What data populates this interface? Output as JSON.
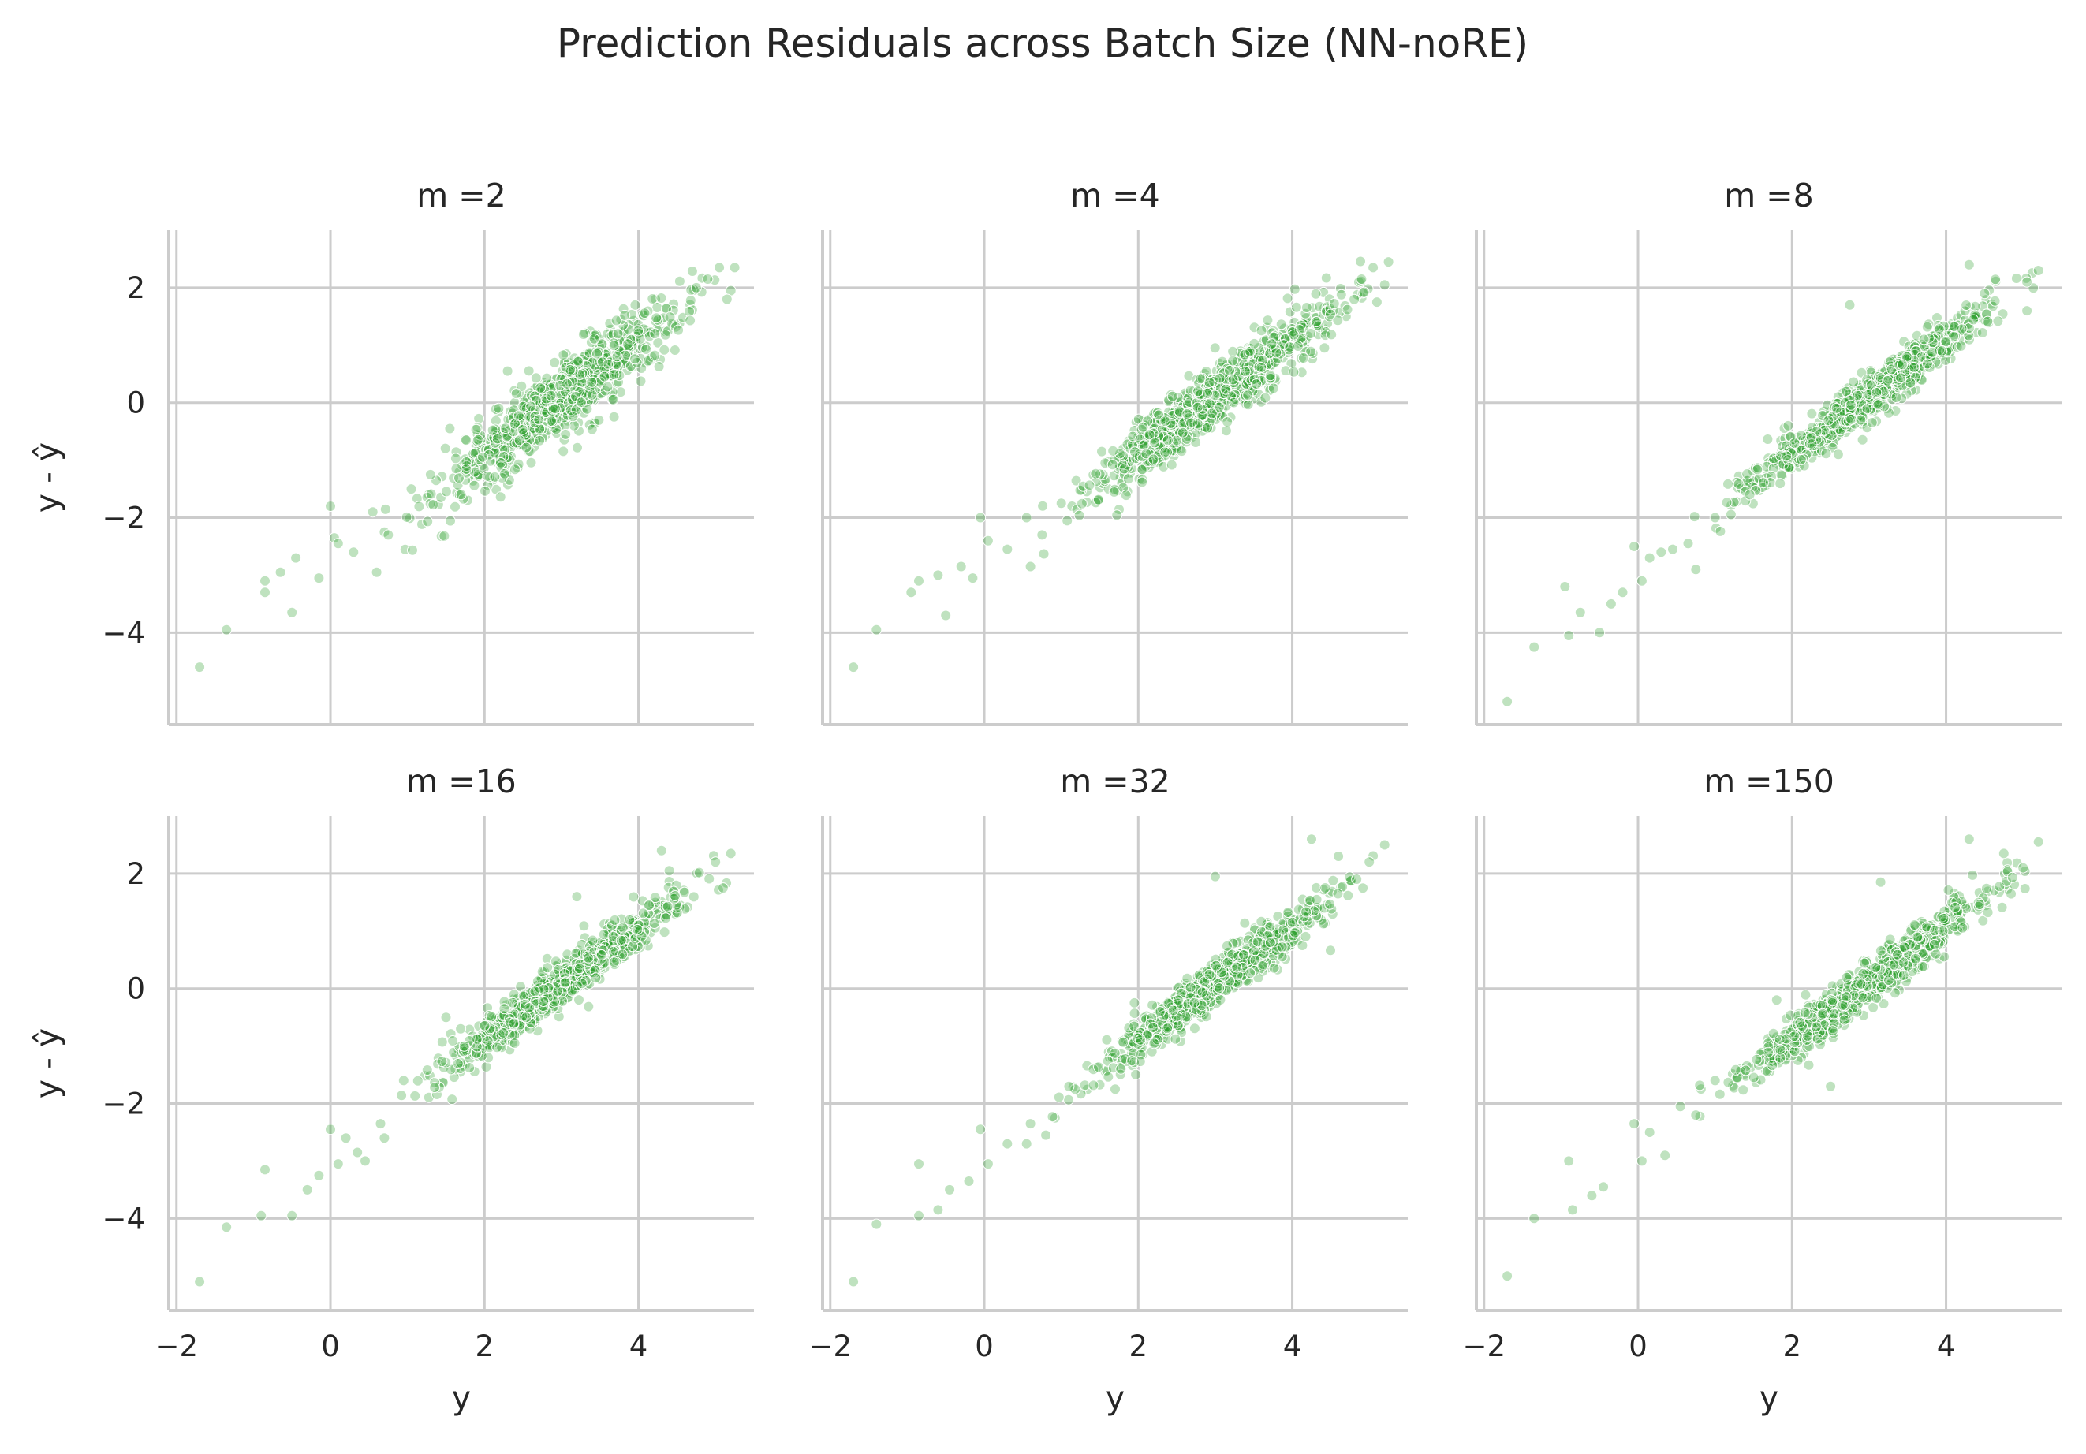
{
  "figure": {
    "title": "Prediction Residuals across Batch Size (NN-noRE)",
    "point_color": "#2ca02c",
    "point_opacity": 0.3,
    "grid_color": "#cccccc"
  },
  "chart_data": {
    "type": "scatter",
    "layout": "3x2 facet grid, shared axes",
    "xlabel": "y",
    "ylabel": "y - ŷ",
    "xlim": [
      -2.1,
      5.5
    ],
    "ylim": [
      -5.6,
      3.0
    ],
    "x_ticks": [
      -2,
      0,
      2,
      4
    ],
    "y_ticks": [
      -4,
      -2,
      0,
      2
    ],
    "grid": true,
    "trend": {
      "slope": 0.98,
      "intercept": -2.85
    },
    "n_points_per_panel": 800,
    "panels": [
      {
        "title": "m =2",
        "noise_sd": 0.32,
        "points": [
          [
            -1.7,
            -4.6
          ],
          [
            -1.35,
            -3.95
          ],
          [
            -0.85,
            -3.3
          ],
          [
            -0.85,
            -3.1
          ],
          [
            -0.65,
            -2.95
          ],
          [
            -0.5,
            -3.65
          ],
          [
            -0.45,
            -2.7
          ],
          [
            -0.15,
            -3.05
          ],
          [
            0.0,
            -1.8
          ],
          [
            0.05,
            -2.35
          ],
          [
            0.1,
            -2.45
          ],
          [
            0.3,
            -2.6
          ],
          [
            0.55,
            -1.9
          ],
          [
            0.6,
            -2.95
          ],
          [
            0.7,
            -2.25
          ],
          [
            0.75,
            -2.3
          ],
          [
            1.05,
            -1.5
          ],
          [
            1.3,
            -1.25
          ],
          [
            1.55,
            -0.45
          ],
          [
            2.3,
            0.55
          ],
          [
            4.75,
            2.0
          ],
          [
            4.9,
            2.15
          ],
          [
            5.05,
            2.35
          ],
          [
            5.2,
            1.95
          ],
          [
            5.25,
            2.35
          ],
          [
            5.15,
            1.8
          ]
        ]
      },
      {
        "title": "m =4",
        "noise_sd": 0.27,
        "points": [
          [
            -1.7,
            -4.6
          ],
          [
            -1.4,
            -3.95
          ],
          [
            -0.95,
            -3.3
          ],
          [
            -0.85,
            -3.1
          ],
          [
            -0.6,
            -3.0
          ],
          [
            -0.5,
            -3.7
          ],
          [
            -0.3,
            -2.85
          ],
          [
            -0.15,
            -3.05
          ],
          [
            -0.05,
            -2.0
          ],
          [
            0.05,
            -2.4
          ],
          [
            0.3,
            -2.55
          ],
          [
            0.55,
            -2.0
          ],
          [
            0.6,
            -2.85
          ],
          [
            0.75,
            -2.3
          ],
          [
            1.0,
            -1.75
          ],
          [
            4.9,
            2.15
          ],
          [
            5.05,
            2.35
          ],
          [
            5.2,
            2.05
          ],
          [
            5.25,
            2.45
          ],
          [
            5.1,
            1.75
          ]
        ]
      },
      {
        "title": "m =8",
        "noise_sd": 0.2,
        "points": [
          [
            -1.7,
            -5.2
          ],
          [
            -1.35,
            -4.25
          ],
          [
            -0.95,
            -3.2
          ],
          [
            -0.9,
            -4.05
          ],
          [
            -0.75,
            -3.65
          ],
          [
            -0.5,
            -4.0
          ],
          [
            -0.35,
            -3.5
          ],
          [
            -0.2,
            -3.3
          ],
          [
            -0.05,
            -2.5
          ],
          [
            0.05,
            -3.1
          ],
          [
            0.15,
            -2.7
          ],
          [
            0.3,
            -2.6
          ],
          [
            0.45,
            -2.55
          ],
          [
            0.65,
            -2.45
          ],
          [
            0.75,
            -2.9
          ],
          [
            1.0,
            -2.0
          ],
          [
            1.45,
            -1.6
          ],
          [
            1.95,
            -0.4
          ],
          [
            2.25,
            -0.6
          ],
          [
            2.6,
            -0.9
          ],
          [
            2.75,
            1.7
          ],
          [
            4.3,
            2.4
          ],
          [
            4.5,
            1.9
          ],
          [
            5.05,
            2.1
          ],
          [
            5.2,
            2.3
          ],
          [
            5.05,
            1.6
          ]
        ]
      },
      {
        "title": "m =16",
        "noise_sd": 0.2,
        "points": [
          [
            -1.7,
            -5.1
          ],
          [
            -1.35,
            -4.15
          ],
          [
            -0.9,
            -3.95
          ],
          [
            -0.85,
            -3.15
          ],
          [
            -0.5,
            -3.95
          ],
          [
            -0.3,
            -3.5
          ],
          [
            -0.15,
            -3.25
          ],
          [
            0.0,
            -2.45
          ],
          [
            0.1,
            -3.05
          ],
          [
            0.2,
            -2.6
          ],
          [
            0.35,
            -2.85
          ],
          [
            0.45,
            -3.0
          ],
          [
            0.65,
            -2.35
          ],
          [
            0.7,
            -2.6
          ],
          [
            0.95,
            -1.6
          ],
          [
            1.5,
            -0.5
          ],
          [
            3.2,
            1.6
          ],
          [
            4.3,
            2.4
          ],
          [
            4.4,
            2.05
          ],
          [
            5.0,
            2.2
          ],
          [
            5.2,
            2.35
          ],
          [
            5.1,
            1.75
          ]
        ]
      },
      {
        "title": "m =32",
        "noise_sd": 0.2,
        "points": [
          [
            -1.7,
            -5.1
          ],
          [
            -1.4,
            -4.1
          ],
          [
            -0.85,
            -3.95
          ],
          [
            -0.85,
            -3.05
          ],
          [
            -0.6,
            -3.85
          ],
          [
            -0.45,
            -3.5
          ],
          [
            -0.2,
            -3.35
          ],
          [
            -0.05,
            -2.45
          ],
          [
            0.05,
            -3.05
          ],
          [
            0.3,
            -2.7
          ],
          [
            0.55,
            -2.7
          ],
          [
            0.6,
            -2.35
          ],
          [
            0.8,
            -2.55
          ],
          [
            1.1,
            -1.7
          ],
          [
            1.7,
            -1.75
          ],
          [
            1.95,
            -0.25
          ],
          [
            3.0,
            1.95
          ],
          [
            4.25,
            2.6
          ],
          [
            4.6,
            2.3
          ],
          [
            5.0,
            2.2
          ],
          [
            5.2,
            2.5
          ]
        ]
      },
      {
        "title": "m =150",
        "noise_sd": 0.2,
        "points": [
          [
            -1.7,
            -5.0
          ],
          [
            -1.35,
            -4.0
          ],
          [
            -0.9,
            -3.0
          ],
          [
            -0.85,
            -3.85
          ],
          [
            -0.6,
            -3.6
          ],
          [
            -0.45,
            -3.45
          ],
          [
            -0.05,
            -2.35
          ],
          [
            0.05,
            -3.0
          ],
          [
            0.15,
            -2.5
          ],
          [
            0.35,
            -2.9
          ],
          [
            0.55,
            -2.05
          ],
          [
            0.75,
            -2.2
          ],
          [
            1.0,
            -1.6
          ],
          [
            1.8,
            -0.2
          ],
          [
            2.5,
            -1.7
          ],
          [
            3.15,
            1.85
          ],
          [
            4.3,
            2.6
          ],
          [
            4.75,
            2.35
          ],
          [
            5.0,
            2.1
          ],
          [
            5.2,
            2.55
          ]
        ]
      }
    ]
  }
}
